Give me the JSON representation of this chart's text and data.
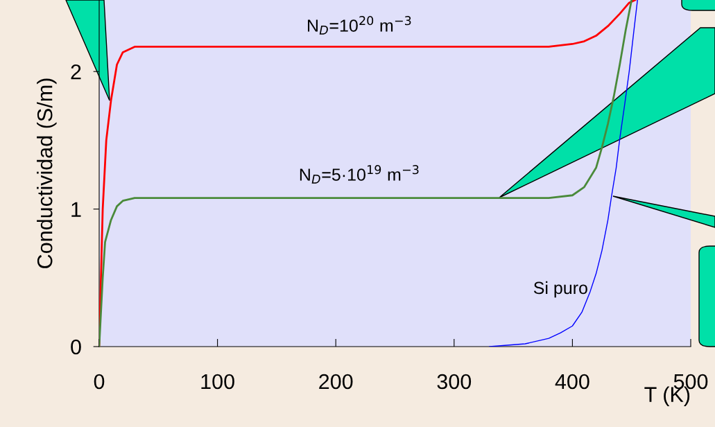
{
  "chart_data": {
    "type": "line",
    "xlabel": "T (K)",
    "ylabel": "Conductividad (S/m)",
    "xlim": [
      0,
      500
    ],
    "ylim": [
      0,
      2.52
    ],
    "xticks": [
      0,
      100,
      200,
      300,
      400,
      500
    ],
    "yticks": [
      0,
      1,
      2
    ],
    "grid": false,
    "legend": false,
    "marker": "none",
    "line_style": "solid",
    "series": [
      {
        "color": "#ff0000",
        "x": [
          0,
          3,
          6,
          10,
          15,
          20,
          30,
          100,
          200,
          300,
          380,
          400,
          410,
          420,
          430,
          440,
          448,
          453
        ],
        "values": [
          0,
          1.0,
          1.5,
          1.79,
          2.05,
          2.14,
          2.18,
          2.18,
          2.18,
          2.18,
          2.18,
          2.2,
          2.22,
          2.26,
          2.33,
          2.42,
          2.5,
          2.52
        ]
      },
      {
        "color": "#4a8a3a",
        "x": [
          0,
          3,
          5,
          10,
          15,
          20,
          30,
          100,
          200,
          300,
          380,
          400,
          410,
          420,
          425,
          430,
          435,
          440,
          445,
          450
        ],
        "values": [
          0,
          0.5,
          0.76,
          0.92,
          1.02,
          1.06,
          1.08,
          1.08,
          1.08,
          1.08,
          1.08,
          1.1,
          1.16,
          1.3,
          1.45,
          1.62,
          1.82,
          2.05,
          2.3,
          2.52
        ]
      },
      {
        "color": "#0000ff",
        "x": [
          330,
          360,
          380,
          390,
          400,
          408,
          415,
          420,
          425,
          430,
          433,
          437,
          440,
          444,
          448,
          452,
          455
        ],
        "values": [
          0,
          0.02,
          0.06,
          0.1,
          0.15,
          0.25,
          0.4,
          0.53,
          0.7,
          0.92,
          1.09,
          1.3,
          1.51,
          1.75,
          2.0,
          2.3,
          2.52
        ]
      }
    ],
    "annotations": [
      "N$_{D}$=10$^{20}$ m$^{−3}$",
      "N$_{D}$=5·10$^{19}$ m$^{−3}$",
      "Si puro"
    ]
  }
}
